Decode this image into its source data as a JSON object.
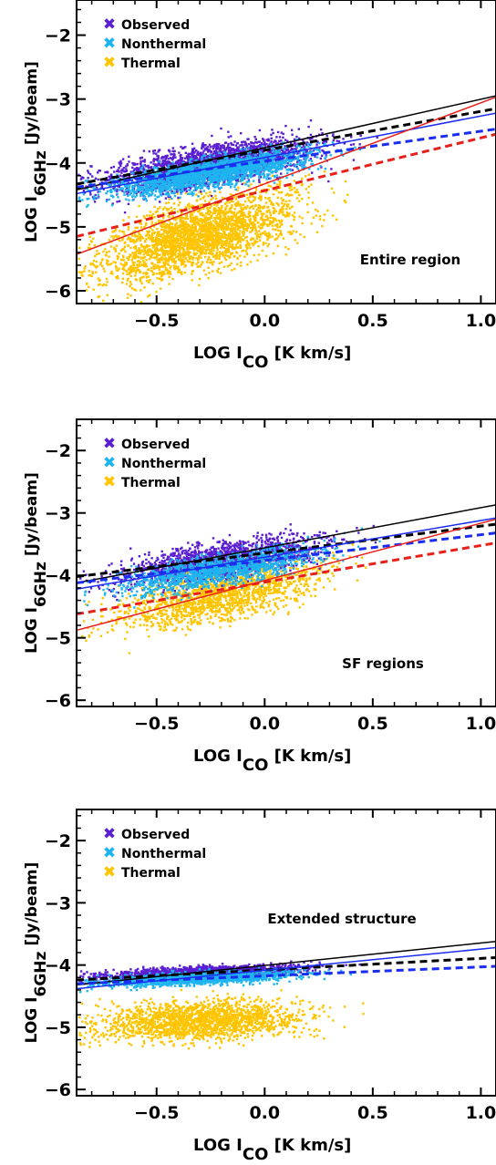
{
  "chart_data": [
    {
      "type": "scatter",
      "region_label": "Entire region",
      "xlabel": {
        "main": "LOG  I",
        "sub": "CO",
        "unit": " [K km/s]"
      },
      "ylabel": {
        "main": "LOG I",
        "sub": "6GHz",
        "unit": " [Jy/beam]"
      },
      "xlim": [
        -0.87,
        1.07
      ],
      "ylim": [
        -6.2,
        -1.45
      ],
      "xticks": [
        -0.5,
        0.0,
        0.5,
        1.0
      ],
      "xtick_labels": [
        "−0.5",
        "0.0",
        "0.5",
        "1.0"
      ],
      "yticks": [
        -6,
        -5,
        -4,
        -3,
        -2
      ],
      "ytick_labels": [
        "−6",
        "−5",
        "−4",
        "−3",
        "−2"
      ],
      "legend": [
        {
          "name": "Observed",
          "color": "#5a1fd0"
        },
        {
          "name": "Nonthermal",
          "color": "#1eb4f0"
        },
        {
          "name": "Thermal",
          "color": "#ffc400"
        }
      ],
      "clouds": [
        {
          "series": "Thermal",
          "color": "#ffc400",
          "count": 2600,
          "x_range": [
            -0.86,
            0.9
          ],
          "x_mode": -0.3,
          "slope": 0.95,
          "intercept": -4.85,
          "scatter": 0.38
        },
        {
          "series": "Observed",
          "color": "#5a1fd0",
          "count": 2400,
          "x_range": [
            -0.86,
            0.95
          ],
          "x_mode": -0.25,
          "slope": 0.55,
          "intercept": -3.9,
          "scatter": 0.22
        },
        {
          "series": "Nonthermal",
          "color": "#1eb4f0",
          "count": 2000,
          "x_range": [
            -0.86,
            0.85
          ],
          "x_mode": -0.25,
          "slope": 0.55,
          "intercept": -4.02,
          "scatter": 0.16
        }
      ],
      "fits": [
        {
          "color": "#000000",
          "dash": false,
          "x": [
            -0.87,
            1.07
          ],
          "y": [
            -4.42,
            -2.95
          ]
        },
        {
          "color": "#000000",
          "dash": true,
          "x": [
            -0.87,
            1.07
          ],
          "y": [
            -4.33,
            -3.15
          ]
        },
        {
          "color": "#1a2cf0",
          "dash": false,
          "x": [
            -0.87,
            1.07
          ],
          "y": [
            -4.48,
            -3.22
          ]
        },
        {
          "color": "#1a2cf0",
          "dash": true,
          "x": [
            -0.87,
            1.07
          ],
          "y": [
            -4.38,
            -3.47
          ]
        },
        {
          "color": "#e8201a",
          "dash": false,
          "x": [
            -0.87,
            1.07
          ],
          "y": [
            -5.43,
            -2.97
          ]
        },
        {
          "color": "#e8201a",
          "dash": true,
          "x": [
            -0.87,
            1.07
          ],
          "y": [
            -5.15,
            -3.55
          ]
        }
      ]
    },
    {
      "type": "scatter",
      "region_label": "SF regions",
      "xlabel": {
        "main": "LOG  I",
        "sub": "CO",
        "unit": " [K km/s]"
      },
      "ylabel": {
        "main": "LOG I",
        "sub": "6GHz",
        "unit": " [Jy/beam]"
      },
      "xlim": [
        -0.87,
        1.07
      ],
      "ylim": [
        -6.1,
        -1.5
      ],
      "xticks": [
        -0.5,
        0.0,
        0.5,
        1.0
      ],
      "xtick_labels": [
        "−0.5",
        "0.0",
        "0.5",
        "1.0"
      ],
      "yticks": [
        -6,
        -5,
        -4,
        -3,
        -2
      ],
      "ytick_labels": [
        "−6",
        "−5",
        "−4",
        "−3",
        "−2"
      ],
      "legend": [
        {
          "name": "Observed",
          "color": "#5a1fd0"
        },
        {
          "name": "Nonthermal",
          "color": "#1eb4f0"
        },
        {
          "name": "Thermal",
          "color": "#ffc400"
        }
      ],
      "clouds": [
        {
          "series": "Thermal",
          "color": "#ffc400",
          "count": 1600,
          "x_range": [
            -0.86,
            0.92
          ],
          "x_mode": -0.2,
          "slope": 0.75,
          "intercept": -4.15,
          "scatter": 0.3
        },
        {
          "series": "Observed",
          "color": "#5a1fd0",
          "count": 1600,
          "x_range": [
            -0.86,
            0.95
          ],
          "x_mode": -0.2,
          "slope": 0.55,
          "intercept": -3.65,
          "scatter": 0.2
        },
        {
          "series": "Nonthermal",
          "color": "#1eb4f0",
          "count": 1300,
          "x_range": [
            -0.86,
            0.9
          ],
          "x_mode": -0.2,
          "slope": 0.6,
          "intercept": -3.8,
          "scatter": 0.17
        }
      ],
      "fits": [
        {
          "color": "#000000",
          "dash": false,
          "x": [
            -0.87,
            1.07
          ],
          "y": [
            -4.12,
            -2.87
          ]
        },
        {
          "color": "#000000",
          "dash": true,
          "x": [
            -0.87,
            1.07
          ],
          "y": [
            -4.02,
            -3.18
          ]
        },
        {
          "color": "#1a2cf0",
          "dash": false,
          "x": [
            -0.87,
            1.07
          ],
          "y": [
            -4.22,
            -3.08
          ]
        },
        {
          "color": "#1a2cf0",
          "dash": true,
          "x": [
            -0.87,
            1.07
          ],
          "y": [
            -4.12,
            -3.32
          ]
        },
        {
          "color": "#e8201a",
          "dash": false,
          "x": [
            -0.87,
            1.07
          ],
          "y": [
            -4.88,
            -3.1
          ]
        },
        {
          "color": "#e8201a",
          "dash": true,
          "x": [
            -0.87,
            1.07
          ],
          "y": [
            -4.62,
            -3.48
          ]
        }
      ]
    },
    {
      "type": "scatter",
      "region_label": "Extended structure",
      "xlabel": {
        "main": "LOG  I",
        "sub": "CO",
        "unit": " [K km/s]"
      },
      "ylabel": {
        "main": "LOG I",
        "sub": "6GHz",
        "unit": " [Jy/beam]"
      },
      "xlim": [
        -0.87,
        1.07
      ],
      "ylim": [
        -6.1,
        -1.5
      ],
      "xticks": [
        -0.5,
        0.0,
        0.5,
        1.0
      ],
      "xtick_labels": [
        "−0.5",
        "0.0",
        "0.5",
        "1.0"
      ],
      "yticks": [
        -6,
        -5,
        -4,
        -3,
        -2
      ],
      "ytick_labels": [
        "−6",
        "−5",
        "−4",
        "−3",
        "−2"
      ],
      "legend": [
        {
          "name": "Observed",
          "color": "#5a1fd0"
        },
        {
          "name": "Nonthermal",
          "color": "#1eb4f0"
        },
        {
          "name": "Thermal",
          "color": "#ffc400"
        }
      ],
      "clouds": [
        {
          "series": "Thermal",
          "color": "#ffc400",
          "count": 1800,
          "x_range": [
            -0.86,
            0.55
          ],
          "x_mode": -0.3,
          "slope": 0.15,
          "intercept": -4.85,
          "scatter": 0.22
        },
        {
          "series": "Observed",
          "color": "#5a1fd0",
          "count": 1600,
          "x_range": [
            -0.86,
            0.5
          ],
          "x_mode": -0.3,
          "slope": 0.15,
          "intercept": -4.07,
          "scatter": 0.06
        },
        {
          "series": "Nonthermal",
          "color": "#1eb4f0",
          "count": 1400,
          "x_range": [
            -0.86,
            0.45
          ],
          "x_mode": -0.3,
          "slope": 0.15,
          "intercept": -4.17,
          "scatter": 0.07
        }
      ],
      "fits": [
        {
          "color": "#000000",
          "dash": false,
          "x": [
            -0.87,
            1.07
          ],
          "y": [
            -4.32,
            -3.62
          ]
        },
        {
          "color": "#000000",
          "dash": true,
          "x": [
            -0.87,
            1.07
          ],
          "y": [
            -4.24,
            -3.88
          ]
        },
        {
          "color": "#1a2cf0",
          "dash": false,
          "x": [
            -0.87,
            1.07
          ],
          "y": [
            -4.38,
            -3.72
          ]
        },
        {
          "color": "#1a2cf0",
          "dash": true,
          "x": [
            -0.87,
            1.07
          ],
          "y": [
            -4.3,
            -4.02
          ]
        }
      ]
    }
  ]
}
